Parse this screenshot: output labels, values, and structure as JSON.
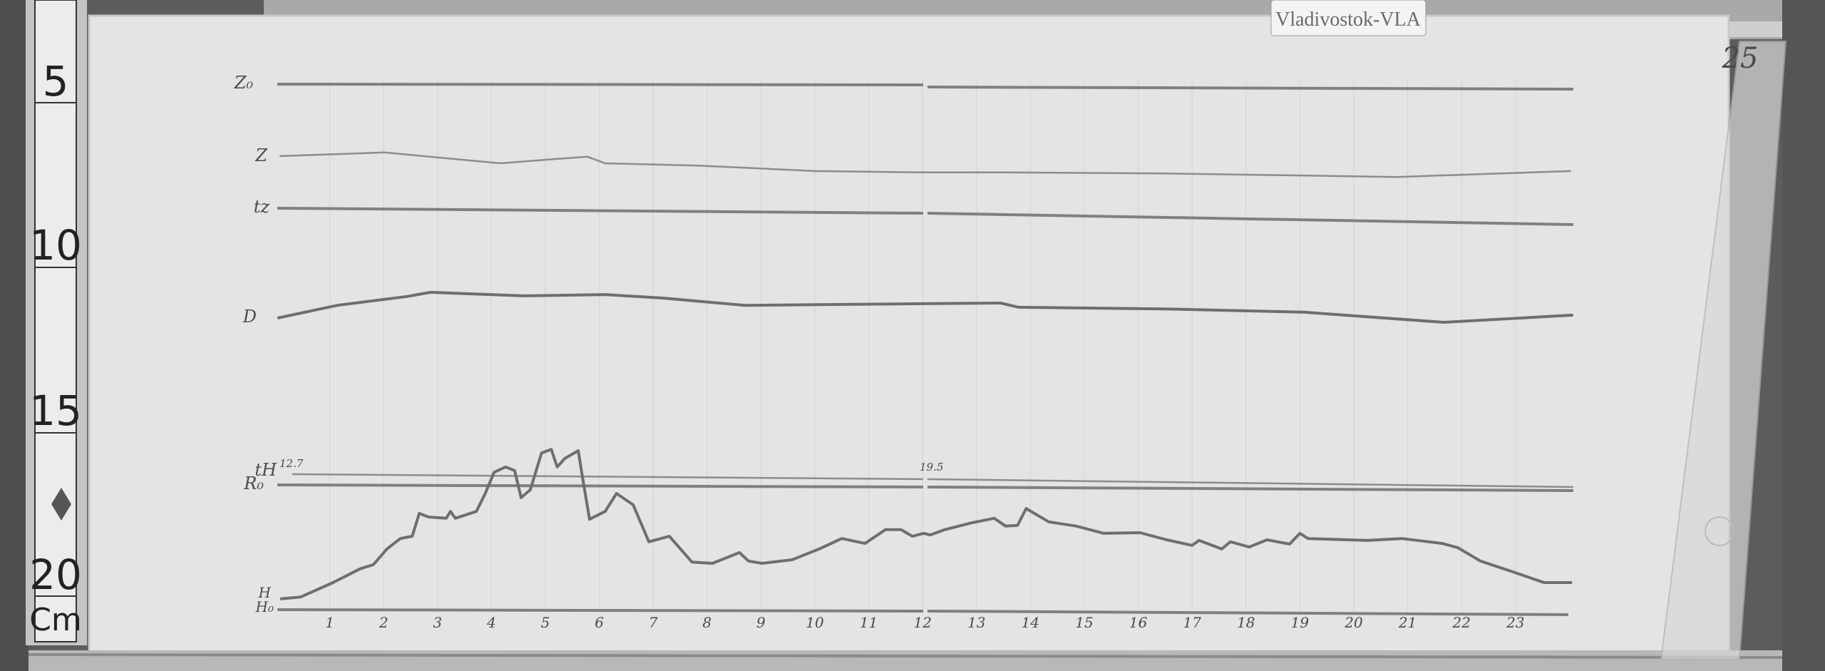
{
  "station_label": "Vladivostok-VLA",
  "page_number": "25",
  "ruler": {
    "labels": [
      "5",
      "10",
      "15",
      "20"
    ],
    "unit": "Cm"
  },
  "trace_labels": {
    "z0": "Z₀",
    "z": "Z",
    "tz": "tz",
    "d": "D",
    "th": "tH",
    "th_value": "12.7",
    "th_value_right": "19.5",
    "r0": "R₀",
    "h": "H",
    "h0": "H₀"
  },
  "colors": {
    "paper": "#e4e4e4",
    "trace": "#6e6e6e",
    "wood": "#5a5a5a"
  },
  "chart_data": {
    "type": "line",
    "title": "",
    "xlabel": "",
    "ylabel": "",
    "x_unit": "hour",
    "y_unit": "cm (left ruler)",
    "xlim": [
      0,
      24
    ],
    "ylim": [
      5,
      21
    ],
    "x_ticks": [
      "1",
      "2",
      "3",
      "4",
      "5",
      "6",
      "7",
      "8",
      "9",
      "10",
      "11",
      "12",
      "13",
      "14",
      "15",
      "16",
      "17",
      "18",
      "19",
      "20",
      "21",
      "22",
      "23"
    ],
    "grid": true,
    "series": [
      {
        "name": "Z",
        "points": [
          [
            0.07,
            7.29
          ],
          [
            2.01,
            7.18
          ],
          [
            4.17,
            7.51
          ],
          [
            5.03,
            7.4
          ],
          [
            5.78,
            7.31
          ],
          [
            6.11,
            7.51
          ],
          [
            7.84,
            7.58
          ],
          [
            10.0,
            7.75
          ],
          [
            12.01,
            7.79
          ],
          [
            13.45,
            7.79
          ],
          [
            16.48,
            7.82
          ],
          [
            20.79,
            7.93
          ],
          [
            24.03,
            7.75
          ]
        ]
      },
      {
        "name": "D",
        "points": [
          [
            0.03,
            12.25
          ],
          [
            1.14,
            11.86
          ],
          [
            2.43,
            11.59
          ],
          [
            2.87,
            11.46
          ],
          [
            4.6,
            11.57
          ],
          [
            6.11,
            11.53
          ],
          [
            7.2,
            11.64
          ],
          [
            8.7,
            11.86
          ],
          [
            12.01,
            11.81
          ],
          [
            13.45,
            11.79
          ],
          [
            13.78,
            11.92
          ],
          [
            16.48,
            11.97
          ],
          [
            19.07,
            12.07
          ],
          [
            21.67,
            12.38
          ],
          [
            24.07,
            12.16
          ]
        ]
      },
      {
        "name": "H",
        "points": [
          [
            0.08,
            20.85
          ],
          [
            0.46,
            20.79
          ],
          [
            1.06,
            20.35
          ],
          [
            1.56,
            19.93
          ],
          [
            1.81,
            19.8
          ],
          [
            2.06,
            19.32
          ],
          [
            2.31,
            19.0
          ],
          [
            2.53,
            18.93
          ],
          [
            2.66,
            18.23
          ],
          [
            2.83,
            18.34
          ],
          [
            3.16,
            18.38
          ],
          [
            3.24,
            18.17
          ],
          [
            3.33,
            18.38
          ],
          [
            3.72,
            18.17
          ],
          [
            3.88,
            17.64
          ],
          [
            4.05,
            16.97
          ],
          [
            4.26,
            16.81
          ],
          [
            4.43,
            16.92
          ],
          [
            4.55,
            17.75
          ],
          [
            4.72,
            17.51
          ],
          [
            4.93,
            16.38
          ],
          [
            5.11,
            16.27
          ],
          [
            5.22,
            16.81
          ],
          [
            5.36,
            16.55
          ],
          [
            5.61,
            16.31
          ],
          [
            5.69,
            17.14
          ],
          [
            5.82,
            18.41
          ],
          [
            6.11,
            18.17
          ],
          [
            6.32,
            17.62
          ],
          [
            6.63,
            17.97
          ],
          [
            6.92,
            19.1
          ],
          [
            7.3,
            18.93
          ],
          [
            7.72,
            19.72
          ],
          [
            8.1,
            19.76
          ],
          [
            8.6,
            19.43
          ],
          [
            8.77,
            19.69
          ],
          [
            9.02,
            19.76
          ],
          [
            9.58,
            19.65
          ],
          [
            10.08,
            19.32
          ],
          [
            10.5,
            19.0
          ],
          [
            10.93,
            19.15
          ],
          [
            11.31,
            18.73
          ],
          [
            11.6,
            18.73
          ],
          [
            11.81,
            18.93
          ],
          [
            12.02,
            18.84
          ],
          [
            12.14,
            18.89
          ],
          [
            12.41,
            18.73
          ],
          [
            12.91,
            18.52
          ],
          [
            13.33,
            18.38
          ],
          [
            13.54,
            18.62
          ],
          [
            13.76,
            18.6
          ],
          [
            13.92,
            18.08
          ],
          [
            14.34,
            18.49
          ],
          [
            14.85,
            18.62
          ],
          [
            15.36,
            18.84
          ],
          [
            16.03,
            18.82
          ],
          [
            16.53,
            19.04
          ],
          [
            17.0,
            19.21
          ],
          [
            17.13,
            19.06
          ],
          [
            17.55,
            19.32
          ],
          [
            17.71,
            19.1
          ],
          [
            18.06,
            19.26
          ],
          [
            18.39,
            19.04
          ],
          [
            18.81,
            19.17
          ],
          [
            19.0,
            18.84
          ],
          [
            19.15,
            19.0
          ],
          [
            20.25,
            19.06
          ],
          [
            20.89,
            19.0
          ],
          [
            21.64,
            19.15
          ],
          [
            21.93,
            19.28
          ],
          [
            22.35,
            19.69
          ],
          [
            22.95,
            20.02
          ],
          [
            23.53,
            20.35
          ],
          [
            24.05,
            20.35
          ]
        ]
      }
    ]
  }
}
